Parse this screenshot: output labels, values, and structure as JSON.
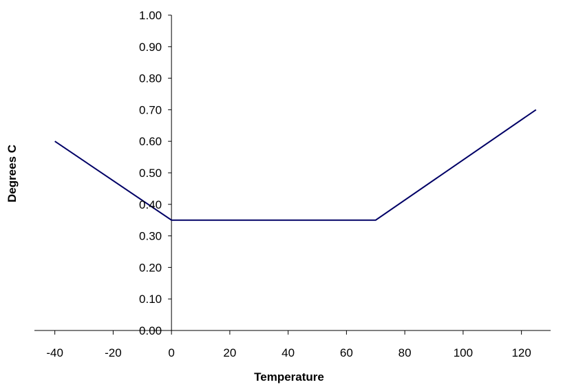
{
  "chart_data": {
    "type": "line",
    "title": "",
    "xlabel": "Temperature",
    "ylabel": "Degrees C",
    "xlim": [
      -47,
      130
    ],
    "ylim": [
      0,
      1
    ],
    "xticks": [
      -40,
      -20,
      0,
      20,
      40,
      60,
      80,
      100,
      120
    ],
    "yticks": [
      0.0,
      0.1,
      0.2,
      0.3,
      0.4,
      0.5,
      0.6,
      0.7,
      0.8,
      0.9,
      1.0
    ],
    "ytick_labels": [
      "0.00",
      "0.10",
      "0.20",
      "0.30",
      "0.40",
      "0.50",
      "0.60",
      "0.70",
      "0.80",
      "0.90",
      "1.00"
    ],
    "xtick_labels": [
      "-40",
      "-20",
      "0",
      "20",
      "40",
      "60",
      "80",
      "100",
      "120"
    ],
    "grid": false,
    "series": [
      {
        "color": "#000066",
        "points": [
          {
            "x": -40,
            "y": 0.6
          },
          {
            "x": 0,
            "y": 0.35
          },
          {
            "x": 70,
            "y": 0.35
          },
          {
            "x": 125,
            "y": 0.7
          }
        ]
      }
    ]
  }
}
